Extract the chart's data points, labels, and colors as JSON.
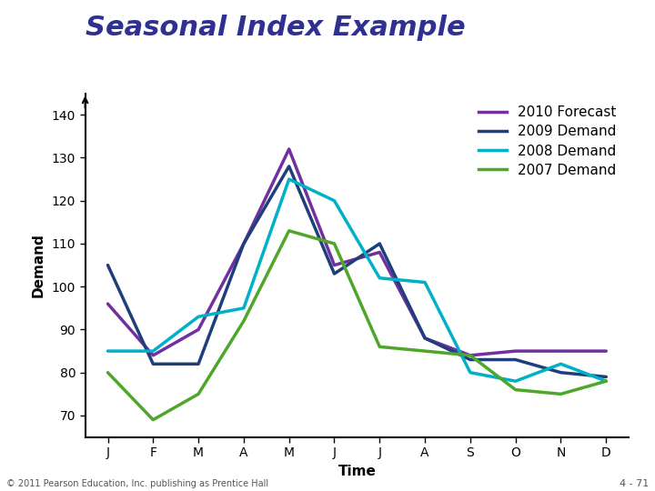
{
  "title": "Seasonal Index Example",
  "xlabel": "Time",
  "ylabel": "Demand",
  "months": [
    "J",
    "F",
    "M",
    "A",
    "M",
    "J",
    "J",
    "A",
    "S",
    "O",
    "N",
    "D"
  ],
  "series": {
    "2010 Forecast": {
      "values": [
        96,
        84,
        90,
        110,
        132,
        105,
        108,
        88,
        84,
        85,
        85,
        85
      ],
      "color": "#7030A0",
      "linewidth": 2.5
    },
    "2009 Demand": {
      "values": [
        105,
        82,
        82,
        110,
        128,
        103,
        110,
        88,
        83,
        83,
        80,
        79
      ],
      "color": "#1F3F7A",
      "linewidth": 2.5
    },
    "2008 Demand": {
      "values": [
        85,
        85,
        93,
        95,
        125,
        120,
        102,
        101,
        80,
        78,
        82,
        78
      ],
      "color": "#00B0C8",
      "linewidth": 2.5
    },
    "2007 Demand": {
      "values": [
        80,
        69,
        75,
        92,
        113,
        110,
        86,
        85,
        84,
        76,
        75,
        78
      ],
      "color": "#4EA72A",
      "linewidth": 2.5
    }
  },
  "ylim": [
    65,
    145
  ],
  "yticks": [
    70,
    80,
    90,
    100,
    110,
    120,
    130,
    140
  ],
  "title_color": "#2E3192",
  "title_fontsize": 22,
  "axis_label_fontsize": 11,
  "tick_fontsize": 10,
  "legend_fontsize": 11,
  "background_color": "#FFFFFF",
  "footer_left": "© 2011 Pearson Education, Inc. publishing as Prentice Hall",
  "footer_right": "4 - 71"
}
